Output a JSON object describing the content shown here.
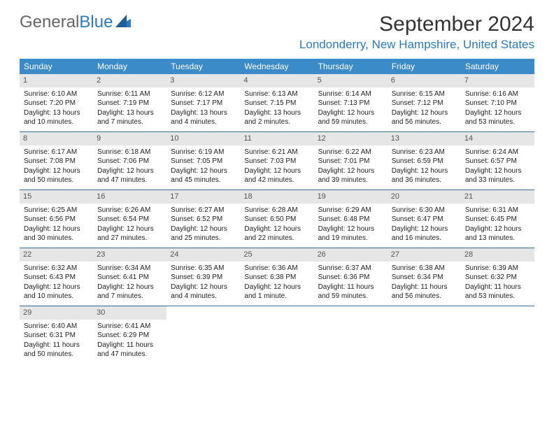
{
  "brand": {
    "name1": "General",
    "name2": "Blue"
  },
  "title": "September 2024",
  "location": "Londonderry, New Hampshire, United States",
  "colors": {
    "header_bg": "#3b8bc9",
    "header_text": "#ffffff",
    "accent": "#2b7bbf",
    "daynum_bg": "#e6e6e6",
    "week_border": "#3b6b8f",
    "body_text": "#222222"
  },
  "weekdays": [
    "Sunday",
    "Monday",
    "Tuesday",
    "Wednesday",
    "Thursday",
    "Friday",
    "Saturday"
  ],
  "days": [
    {
      "n": "1",
      "sr": "Sunrise: 6:10 AM",
      "ss": "Sunset: 7:20 PM",
      "d1": "Daylight: 13 hours",
      "d2": "and 10 minutes."
    },
    {
      "n": "2",
      "sr": "Sunrise: 6:11 AM",
      "ss": "Sunset: 7:19 PM",
      "d1": "Daylight: 13 hours",
      "d2": "and 7 minutes."
    },
    {
      "n": "3",
      "sr": "Sunrise: 6:12 AM",
      "ss": "Sunset: 7:17 PM",
      "d1": "Daylight: 13 hours",
      "d2": "and 4 minutes."
    },
    {
      "n": "4",
      "sr": "Sunrise: 6:13 AM",
      "ss": "Sunset: 7:15 PM",
      "d1": "Daylight: 13 hours",
      "d2": "and 2 minutes."
    },
    {
      "n": "5",
      "sr": "Sunrise: 6:14 AM",
      "ss": "Sunset: 7:13 PM",
      "d1": "Daylight: 12 hours",
      "d2": "and 59 minutes."
    },
    {
      "n": "6",
      "sr": "Sunrise: 6:15 AM",
      "ss": "Sunset: 7:12 PM",
      "d1": "Daylight: 12 hours",
      "d2": "and 56 minutes."
    },
    {
      "n": "7",
      "sr": "Sunrise: 6:16 AM",
      "ss": "Sunset: 7:10 PM",
      "d1": "Daylight: 12 hours",
      "d2": "and 53 minutes."
    },
    {
      "n": "8",
      "sr": "Sunrise: 6:17 AM",
      "ss": "Sunset: 7:08 PM",
      "d1": "Daylight: 12 hours",
      "d2": "and 50 minutes."
    },
    {
      "n": "9",
      "sr": "Sunrise: 6:18 AM",
      "ss": "Sunset: 7:06 PM",
      "d1": "Daylight: 12 hours",
      "d2": "and 47 minutes."
    },
    {
      "n": "10",
      "sr": "Sunrise: 6:19 AM",
      "ss": "Sunset: 7:05 PM",
      "d1": "Daylight: 12 hours",
      "d2": "and 45 minutes."
    },
    {
      "n": "11",
      "sr": "Sunrise: 6:21 AM",
      "ss": "Sunset: 7:03 PM",
      "d1": "Daylight: 12 hours",
      "d2": "and 42 minutes."
    },
    {
      "n": "12",
      "sr": "Sunrise: 6:22 AM",
      "ss": "Sunset: 7:01 PM",
      "d1": "Daylight: 12 hours",
      "d2": "and 39 minutes."
    },
    {
      "n": "13",
      "sr": "Sunrise: 6:23 AM",
      "ss": "Sunset: 6:59 PM",
      "d1": "Daylight: 12 hours",
      "d2": "and 36 minutes."
    },
    {
      "n": "14",
      "sr": "Sunrise: 6:24 AM",
      "ss": "Sunset: 6:57 PM",
      "d1": "Daylight: 12 hours",
      "d2": "and 33 minutes."
    },
    {
      "n": "15",
      "sr": "Sunrise: 6:25 AM",
      "ss": "Sunset: 6:56 PM",
      "d1": "Daylight: 12 hours",
      "d2": "and 30 minutes."
    },
    {
      "n": "16",
      "sr": "Sunrise: 6:26 AM",
      "ss": "Sunset: 6:54 PM",
      "d1": "Daylight: 12 hours",
      "d2": "and 27 minutes."
    },
    {
      "n": "17",
      "sr": "Sunrise: 6:27 AM",
      "ss": "Sunset: 6:52 PM",
      "d1": "Daylight: 12 hours",
      "d2": "and 25 minutes."
    },
    {
      "n": "18",
      "sr": "Sunrise: 6:28 AM",
      "ss": "Sunset: 6:50 PM",
      "d1": "Daylight: 12 hours",
      "d2": "and 22 minutes."
    },
    {
      "n": "19",
      "sr": "Sunrise: 6:29 AM",
      "ss": "Sunset: 6:48 PM",
      "d1": "Daylight: 12 hours",
      "d2": "and 19 minutes."
    },
    {
      "n": "20",
      "sr": "Sunrise: 6:30 AM",
      "ss": "Sunset: 6:47 PM",
      "d1": "Daylight: 12 hours",
      "d2": "and 16 minutes."
    },
    {
      "n": "21",
      "sr": "Sunrise: 6:31 AM",
      "ss": "Sunset: 6:45 PM",
      "d1": "Daylight: 12 hours",
      "d2": "and 13 minutes."
    },
    {
      "n": "22",
      "sr": "Sunrise: 6:32 AM",
      "ss": "Sunset: 6:43 PM",
      "d1": "Daylight: 12 hours",
      "d2": "and 10 minutes."
    },
    {
      "n": "23",
      "sr": "Sunrise: 6:34 AM",
      "ss": "Sunset: 6:41 PM",
      "d1": "Daylight: 12 hours",
      "d2": "and 7 minutes."
    },
    {
      "n": "24",
      "sr": "Sunrise: 6:35 AM",
      "ss": "Sunset: 6:39 PM",
      "d1": "Daylight: 12 hours",
      "d2": "and 4 minutes."
    },
    {
      "n": "25",
      "sr": "Sunrise: 6:36 AM",
      "ss": "Sunset: 6:38 PM",
      "d1": "Daylight: 12 hours",
      "d2": "and 1 minute."
    },
    {
      "n": "26",
      "sr": "Sunrise: 6:37 AM",
      "ss": "Sunset: 6:36 PM",
      "d1": "Daylight: 11 hours",
      "d2": "and 59 minutes."
    },
    {
      "n": "27",
      "sr": "Sunrise: 6:38 AM",
      "ss": "Sunset: 6:34 PM",
      "d1": "Daylight: 11 hours",
      "d2": "and 56 minutes."
    },
    {
      "n": "28",
      "sr": "Sunrise: 6:39 AM",
      "ss": "Sunset: 6:32 PM",
      "d1": "Daylight: 11 hours",
      "d2": "and 53 minutes."
    },
    {
      "n": "29",
      "sr": "Sunrise: 6:40 AM",
      "ss": "Sunset: 6:31 PM",
      "d1": "Daylight: 11 hours",
      "d2": "and 50 minutes."
    },
    {
      "n": "30",
      "sr": "Sunrise: 6:41 AM",
      "ss": "Sunset: 6:29 PM",
      "d1": "Daylight: 11 hours",
      "d2": "and 47 minutes."
    }
  ]
}
